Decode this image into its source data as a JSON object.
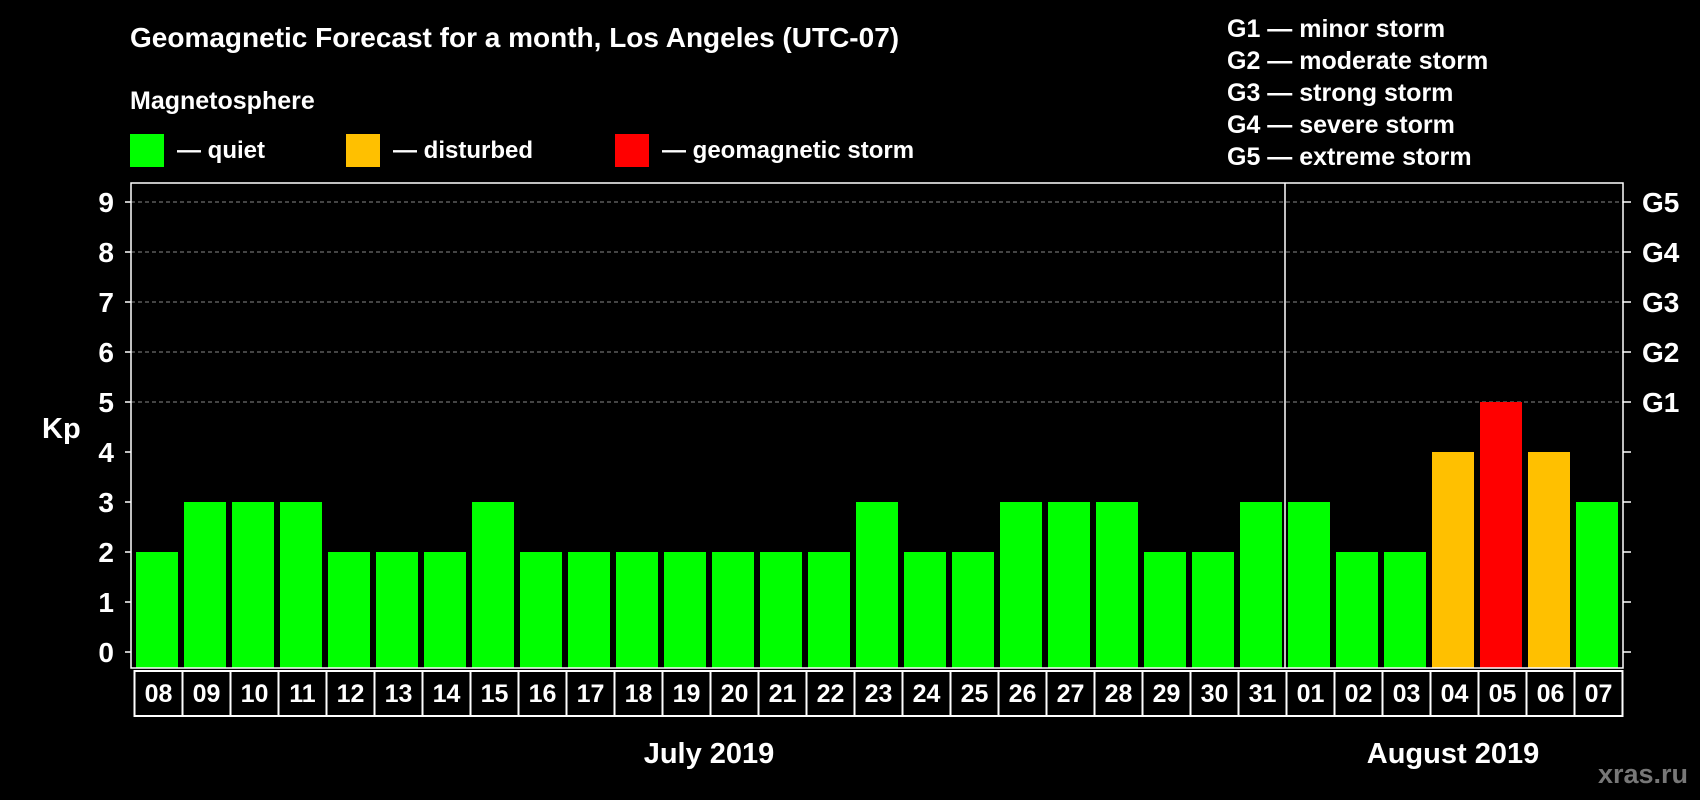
{
  "chart_data": {
    "type": "bar",
    "title": "Geomagnetic Forecast for a month, Los Angeles (UTC-07)",
    "legend_title": "Magnetosphere",
    "legend": [
      {
        "label": "— quiet",
        "color": "#00ff00"
      },
      {
        "label": "— disturbed",
        "color": "#ffc000"
      },
      {
        "label": "— geomagnetic storm",
        "color": "#ff0000"
      }
    ],
    "storm_scale": [
      "G1 — minor storm",
      "G2 — moderate storm",
      "G3 — strong storm",
      "G4 — severe storm",
      "G5 — extreme storm"
    ],
    "ylabel": "Kp",
    "ylim": [
      0,
      9
    ],
    "yticks": [
      "0",
      "1",
      "2",
      "3",
      "4",
      "5",
      "6",
      "7",
      "8",
      "9"
    ],
    "right_ticks": [
      {
        "kp": 5,
        "label": "G1"
      },
      {
        "kp": 6,
        "label": "G2"
      },
      {
        "kp": 7,
        "label": "G3"
      },
      {
        "kp": 8,
        "label": "G4"
      },
      {
        "kp": 9,
        "label": "G5"
      }
    ],
    "categories": [
      "08",
      "09",
      "10",
      "11",
      "12",
      "13",
      "14",
      "15",
      "16",
      "17",
      "18",
      "19",
      "20",
      "21",
      "22",
      "23",
      "24",
      "25",
      "26",
      "27",
      "28",
      "29",
      "30",
      "31",
      "01",
      "02",
      "03",
      "04",
      "05",
      "06",
      "07"
    ],
    "values": [
      2,
      3,
      3,
      3,
      2,
      2,
      2,
      3,
      2,
      2,
      2,
      2,
      2,
      2,
      2,
      3,
      2,
      2,
      3,
      3,
      3,
      2,
      2,
      3,
      3,
      2,
      2,
      4,
      5,
      4,
      3
    ],
    "colors": {
      "quiet": "#00ff00",
      "disturbed": "#ffc000",
      "storm": "#ff0000"
    },
    "months": [
      {
        "label": "July 2019",
        "start_index": 0,
        "end_index": 23
      },
      {
        "label": "August 2019",
        "start_index": 24,
        "end_index": 30
      }
    ],
    "grid": "dashed horizontal lines at Kp 5–9",
    "watermark": "xras.ru"
  }
}
